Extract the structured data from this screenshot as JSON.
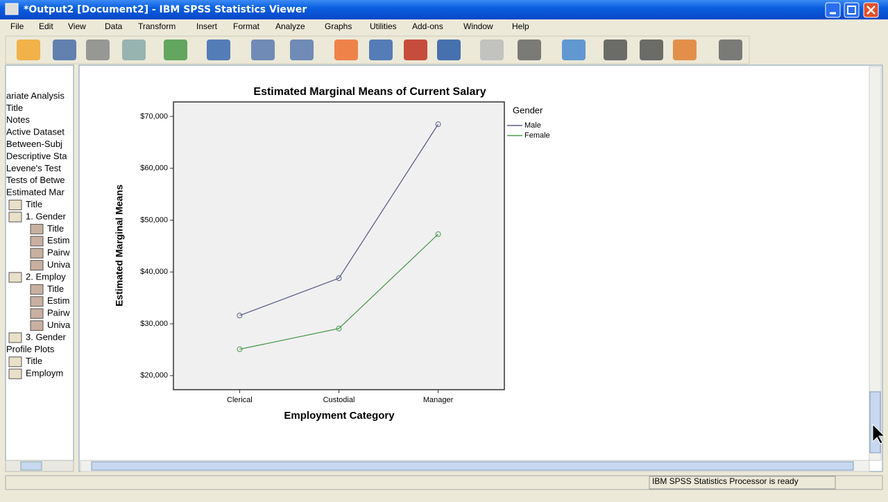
{
  "window": {
    "title": "*Output2 [Document2] - IBM SPSS Statistics Viewer"
  },
  "menu": [
    "File",
    "Edit",
    "View",
    "Data",
    "Transform",
    "Insert",
    "Format",
    "Analyze",
    "Graphs",
    "Utilities",
    "Add-ons",
    "Window",
    "Help"
  ],
  "outline": [
    "ariate Analysis",
    "Title",
    "Notes",
    "Active Dataset",
    "Between-Subj",
    "Descriptive Sta",
    "Levene's Test",
    "Tests of Betwe",
    "Estimated Mar",
    "Title",
    "1. Gender",
    "Title",
    "Estim",
    "Pairw",
    "Univa",
    "2. Employ",
    "Title",
    "Estim",
    "Pairw",
    "Univa",
    "3. Gender",
    "Profile Plots",
    "Title",
    "Employm"
  ],
  "chart_data": {
    "type": "line",
    "title": "Estimated Marginal Means of Current Salary",
    "x_label": "Employment Category",
    "y_label": "Estimated Marginal Means",
    "categories": [
      "Clerical",
      "Custodial",
      "Manager"
    ],
    "legend_title": "Gender",
    "series": [
      {
        "name": "Male",
        "color": "#5a5f8c",
        "values": [
          31600,
          38800,
          68500
        ]
      },
      {
        "name": "Female",
        "color": "#4a9a4a",
        "values": [
          25100,
          29100,
          47300
        ]
      }
    ],
    "ylim": [
      17300,
      72800
    ],
    "yticks": [
      {
        "value": 20000,
        "label": "$20,000"
      },
      {
        "value": 30000,
        "label": "$30,000"
      },
      {
        "value": 40000,
        "label": "$40,000"
      },
      {
        "value": 50000,
        "label": "$50,000"
      },
      {
        "value": 60000,
        "label": "$60,000"
      },
      {
        "value": 70000,
        "label": "$70,000"
      }
    ],
    "grid": false
  },
  "status": "IBM SPSS Statistics Processor is ready"
}
